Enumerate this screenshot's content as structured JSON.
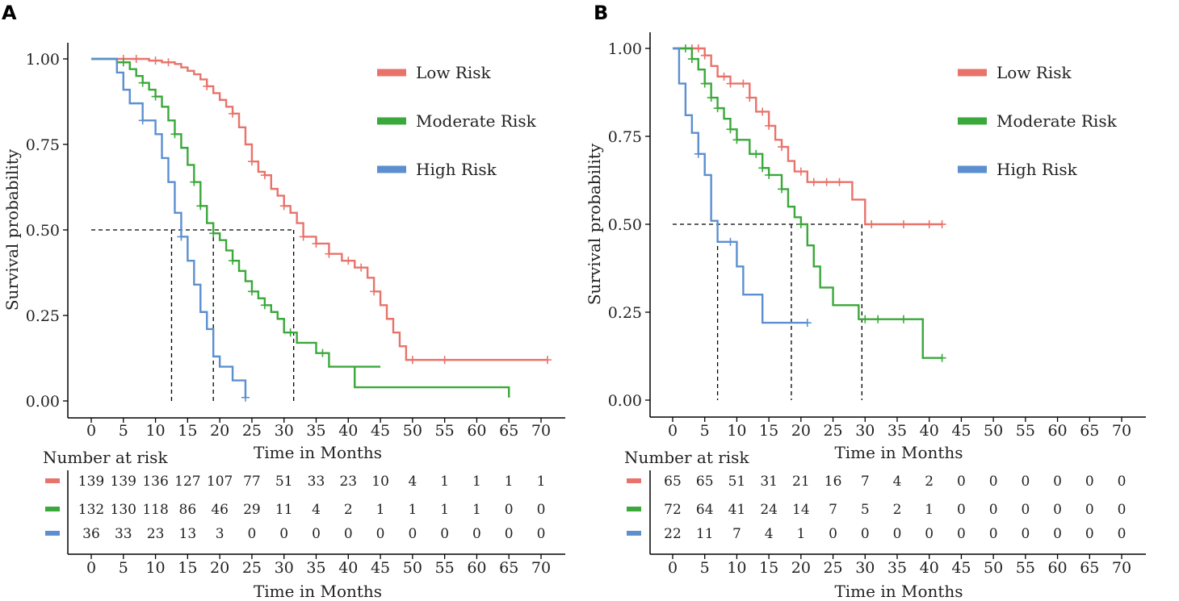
{
  "chart_data": [
    {
      "type": "line",
      "subtype": "kaplan-meier",
      "panel_label": "A",
      "xlabel": "Time in Months",
      "ylabel": "Survival probability",
      "xlim": [
        0,
        70
      ],
      "ylim": [
        0,
        1
      ],
      "x_ticks": [
        0,
        5,
        10,
        15,
        20,
        25,
        30,
        35,
        40,
        45,
        50,
        55,
        60,
        65,
        70
      ],
      "y_ticks": [
        "0.00",
        "0.25",
        "0.50",
        "0.75",
        "1.00"
      ],
      "medians": [
        12.5,
        19,
        31.5
      ],
      "series": [
        {
          "name": "Low Risk",
          "color": "#e8736b",
          "steps": [
            [
              0,
              1
            ],
            [
              5,
              1
            ],
            [
              9,
              0.995
            ],
            [
              11,
              0.99
            ],
            [
              13,
              0.985
            ],
            [
              14,
              0.975
            ],
            [
              15,
              0.965
            ],
            [
              16,
              0.955
            ],
            [
              17,
              0.94
            ],
            [
              18,
              0.92
            ],
            [
              19,
              0.9
            ],
            [
              20,
              0.88
            ],
            [
              21,
              0.86
            ],
            [
              22,
              0.84
            ],
            [
              23,
              0.8
            ],
            [
              24,
              0.75
            ],
            [
              25,
              0.7
            ],
            [
              26,
              0.67
            ],
            [
              27,
              0.66
            ],
            [
              28,
              0.62
            ],
            [
              29,
              0.6
            ],
            [
              30,
              0.57
            ],
            [
              31,
              0.55
            ],
            [
              32,
              0.52
            ],
            [
              33,
              0.48
            ],
            [
              35,
              0.46
            ],
            [
              37,
              0.43
            ],
            [
              39,
              0.41
            ],
            [
              41,
              0.39
            ],
            [
              43,
              0.36
            ],
            [
              44,
              0.32
            ],
            [
              45,
              0.28
            ],
            [
              46,
              0.24
            ],
            [
              47,
              0.2
            ],
            [
              48,
              0.16
            ],
            [
              49,
              0.12
            ],
            [
              71,
              0.12
            ]
          ],
          "censor": [
            5,
            7,
            10,
            12,
            18,
            22,
            25,
            27,
            30,
            33,
            35,
            37,
            40,
            42,
            44,
            50,
            55,
            71
          ]
        },
        {
          "name": "Moderate Risk",
          "color": "#3aa83a",
          "steps": [
            [
              0,
              1
            ],
            [
              4,
              0.99
            ],
            [
              6,
              0.97
            ],
            [
              7,
              0.95
            ],
            [
              8,
              0.93
            ],
            [
              9,
              0.91
            ],
            [
              10,
              0.89
            ],
            [
              11,
              0.86
            ],
            [
              12,
              0.82
            ],
            [
              13,
              0.78
            ],
            [
              14,
              0.74
            ],
            [
              15,
              0.69
            ],
            [
              16,
              0.64
            ],
            [
              17,
              0.57
            ],
            [
              18,
              0.52
            ],
            [
              19,
              0.49
            ],
            [
              20,
              0.47
            ],
            [
              21,
              0.44
            ],
            [
              22,
              0.41
            ],
            [
              23,
              0.38
            ],
            [
              24,
              0.35
            ],
            [
              25,
              0.32
            ],
            [
              26,
              0.3
            ],
            [
              27,
              0.28
            ],
            [
              28,
              0.26
            ],
            [
              29,
              0.24
            ],
            [
              30,
              0.2
            ],
            [
              32,
              0.17
            ],
            [
              35,
              0.14
            ],
            [
              37,
              0.1
            ],
            [
              45,
              0.1
            ],
            [
              45,
              0.1
            ],
            [
              41,
              0.04
            ],
            [
              65,
              0.04
            ],
            [
              65,
              0.01
            ]
          ],
          "censor": [
            5,
            8,
            10,
            13,
            16,
            17,
            19,
            22,
            25,
            27,
            31,
            36
          ]
        },
        {
          "name": "High Risk",
          "color": "#5b8fd0",
          "steps": [
            [
              0,
              1
            ],
            [
              4,
              0.96
            ],
            [
              5,
              0.91
            ],
            [
              6,
              0.87
            ],
            [
              8,
              0.82
            ],
            [
              10,
              0.78
            ],
            [
              11,
              0.71
            ],
            [
              12,
              0.64
            ],
            [
              13,
              0.55
            ],
            [
              14,
              0.48
            ],
            [
              15,
              0.41
            ],
            [
              16,
              0.34
            ],
            [
              17,
              0.26
            ],
            [
              18,
              0.21
            ],
            [
              19,
              0.13
            ],
            [
              20,
              0.1
            ],
            [
              22,
              0.06
            ],
            [
              24,
              0.01
            ]
          ],
          "censor": [
            8,
            14,
            24
          ]
        }
      ],
      "risk_table": {
        "title": "Number at risk",
        "rows": [
          {
            "group": "Low Risk",
            "values": [
              139,
              139,
              136,
              127,
              107,
              77,
              51,
              33,
              23,
              10,
              4,
              1,
              1,
              1,
              1
            ]
          },
          {
            "group": "Moderate Risk",
            "values": [
              132,
              130,
              118,
              86,
              46,
              29,
              11,
              4,
              2,
              1,
              1,
              1,
              1,
              0,
              0
            ]
          },
          {
            "group": "High Risk",
            "values": [
              36,
              33,
              23,
              13,
              3,
              0,
              0,
              0,
              0,
              0,
              0,
              0,
              0,
              0,
              0
            ]
          }
        ],
        "xlabel": "Time in Months"
      }
    },
    {
      "type": "line",
      "subtype": "kaplan-meier",
      "panel_label": "B",
      "xlabel": "Time in Months",
      "ylabel": "Survival probability",
      "xlim": [
        0,
        70
      ],
      "ylim": [
        0,
        1
      ],
      "x_ticks": [
        0,
        5,
        10,
        15,
        20,
        25,
        30,
        35,
        40,
        45,
        50,
        55,
        60,
        65,
        70
      ],
      "y_ticks": [
        "0.00",
        "0.25",
        "0.50",
        "0.75",
        "1.00"
      ],
      "medians": [
        7,
        18.5,
        29.5
      ],
      "series": [
        {
          "name": "Low Risk",
          "color": "#e8736b",
          "steps": [
            [
              0,
              1
            ],
            [
              5,
              0.98
            ],
            [
              6,
              0.95
            ],
            [
              7,
              0.92
            ],
            [
              9,
              0.9
            ],
            [
              12,
              0.86
            ],
            [
              13,
              0.82
            ],
            [
              15,
              0.78
            ],
            [
              16,
              0.74
            ],
            [
              17,
              0.72
            ],
            [
              18,
              0.68
            ],
            [
              19,
              0.65
            ],
            [
              21,
              0.62
            ],
            [
              28,
              0.57
            ],
            [
              30,
              0.5
            ],
            [
              42,
              0.5
            ]
          ],
          "censor": [
            3,
            4,
            5,
            8,
            9,
            11,
            12,
            14,
            15,
            17,
            20,
            22,
            24,
            26,
            31,
            36,
            40,
            42
          ]
        },
        {
          "name": "Moderate Risk",
          "color": "#3aa83a",
          "steps": [
            [
              0,
              1
            ],
            [
              3,
              0.97
            ],
            [
              4,
              0.94
            ],
            [
              5,
              0.9
            ],
            [
              6,
              0.86
            ],
            [
              7,
              0.83
            ],
            [
              8,
              0.8
            ],
            [
              9,
              0.77
            ],
            [
              10,
              0.74
            ],
            [
              12,
              0.7
            ],
            [
              14,
              0.66
            ],
            [
              15,
              0.64
            ],
            [
              17,
              0.6
            ],
            [
              18,
              0.55
            ],
            [
              19,
              0.52
            ],
            [
              20,
              0.5
            ],
            [
              21,
              0.44
            ],
            [
              22,
              0.38
            ],
            [
              23,
              0.32
            ],
            [
              25,
              0.27
            ],
            [
              29,
              0.23
            ],
            [
              39,
              0.12
            ],
            [
              42,
              0.12
            ]
          ],
          "censor": [
            2,
            3,
            5,
            6,
            7,
            9,
            10,
            13,
            14,
            15,
            17,
            20,
            30,
            32,
            36,
            42
          ]
        },
        {
          "name": "High Risk",
          "color": "#5b8fd0",
          "steps": [
            [
              0,
              1
            ],
            [
              1,
              0.9
            ],
            [
              2,
              0.81
            ],
            [
              3,
              0.76
            ],
            [
              4,
              0.7
            ],
            [
              5,
              0.64
            ],
            [
              6,
              0.58
            ],
            [
              6,
              0.51
            ],
            [
              7,
              0.45
            ],
            [
              10,
              0.38
            ],
            [
              11,
              0.3
            ],
            [
              14,
              0.22
            ],
            [
              21,
              0.22
            ]
          ],
          "censor": [
            4,
            9,
            21
          ]
        }
      ],
      "risk_table": {
        "title": "Number at risk",
        "rows": [
          {
            "group": "Low Risk",
            "values": [
              65,
              65,
              51,
              31,
              21,
              16,
              7,
              4,
              2,
              0,
              0,
              0,
              0,
              0,
              0
            ]
          },
          {
            "group": "Moderate Risk",
            "values": [
              72,
              64,
              41,
              24,
              14,
              7,
              5,
              2,
              1,
              0,
              0,
              0,
              0,
              0,
              0
            ]
          },
          {
            "group": "High Risk",
            "values": [
              22,
              11,
              7,
              4,
              1,
              0,
              0,
              0,
              0,
              0,
              0,
              0,
              0,
              0,
              0
            ]
          }
        ],
        "xlabel": "Time in Months"
      }
    }
  ]
}
